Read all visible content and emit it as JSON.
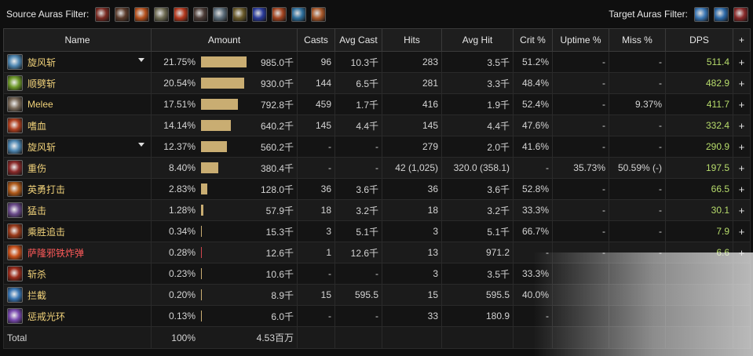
{
  "filters": {
    "source_label": "Source Auras Filter:",
    "target_label": "Target Auras Filter:",
    "source_icons": [
      {
        "name": "aura-claw-icon",
        "color": "#7a2a22"
      },
      {
        "name": "aura-arm-icon",
        "color": "#5a3a2a"
      },
      {
        "name": "aura-fire-fist-icon",
        "color": "#b5501c"
      },
      {
        "name": "aura-whirl-icon",
        "color": "#6d6a52"
      },
      {
        "name": "aura-flame-icon",
        "color": "#b4381d"
      },
      {
        "name": "aura-arm2-icon",
        "color": "#4b3b36"
      },
      {
        "name": "aura-slash-icon",
        "color": "#5c6d7a"
      },
      {
        "name": "aura-beast-icon",
        "color": "#6a5a2a"
      },
      {
        "name": "aura-blue-fire-icon",
        "color": "#2a3a9a"
      },
      {
        "name": "aura-red-arrow-icon",
        "color": "#a34420"
      },
      {
        "name": "aura-ice-icon",
        "color": "#2e6f9c"
      },
      {
        "name": "aura-sun-icon",
        "color": "#a8582a"
      }
    ],
    "target_icons": [
      {
        "name": "target-swirl-icon",
        "color": "#3a77b5"
      },
      {
        "name": "target-swirl2-icon",
        "color": "#2d6aa8"
      },
      {
        "name": "target-blade-icon",
        "color": "#8a2a2a"
      }
    ]
  },
  "columns": [
    "Name",
    "Amount",
    "Casts",
    "Avg Cast",
    "Hits",
    "Avg Hit",
    "Crit %",
    "Uptime %",
    "Miss %",
    "DPS",
    "+"
  ],
  "rows": [
    {
      "icon": "whirlwind-icon",
      "color": "#4f88b3",
      "name": "旋风斩",
      "dropdown": true,
      "pct": "21.75%",
      "frac": 0.2175,
      "amount": "985.0千",
      "casts": "96",
      "avg_cast": "10.3千",
      "hits": "283",
      "avg_hit": "3.5千",
      "crit": "51.2%",
      "uptime": "-",
      "miss": "-",
      "dps": "511.4",
      "plus": "+"
    },
    {
      "icon": "cleave-icon",
      "color": "#6f9a2a",
      "name": "顺劈斩",
      "dropdown": false,
      "pct": "20.54%",
      "frac": 0.2054,
      "amount": "930.0千",
      "casts": "144",
      "avg_cast": "6.5千",
      "hits": "281",
      "avg_hit": "3.3千",
      "crit": "48.4%",
      "uptime": "-",
      "miss": "-",
      "dps": "482.9",
      "plus": "+"
    },
    {
      "icon": "melee-icon",
      "color": "#7a6a5a",
      "name": "Melee",
      "dropdown": false,
      "pct": "17.51%",
      "frac": 0.1751,
      "amount": "792.8千",
      "casts": "459",
      "avg_cast": "1.7千",
      "hits": "416",
      "avg_hit": "1.9千",
      "crit": "52.4%",
      "uptime": "-",
      "miss": "9.37%",
      "dps": "411.7",
      "plus": "+"
    },
    {
      "icon": "bloodthirst-icon",
      "color": "#b04020",
      "name": "嗜血",
      "dropdown": false,
      "pct": "14.14%",
      "frac": 0.1414,
      "amount": "640.2千",
      "casts": "145",
      "avg_cast": "4.4千",
      "hits": "145",
      "avg_hit": "4.4千",
      "crit": "47.6%",
      "uptime": "-",
      "miss": "-",
      "dps": "332.4",
      "plus": "+"
    },
    {
      "icon": "whirlwind2-icon",
      "color": "#4f88b3",
      "name": "旋风斩",
      "dropdown": true,
      "pct": "12.37%",
      "frac": 0.1237,
      "amount": "560.2千",
      "casts": "-",
      "avg_cast": "-",
      "hits": "279",
      "avg_hit": "2.0千",
      "crit": "41.6%",
      "uptime": "-",
      "miss": "-",
      "dps": "290.9",
      "plus": "+"
    },
    {
      "icon": "deep-wounds-icon",
      "color": "#8a2a2a",
      "name": "重伤",
      "dropdown": false,
      "pct": "8.40%",
      "frac": 0.084,
      "amount": "380.4千",
      "casts": "-",
      "avg_cast": "-",
      "hits": "42 (1,025)",
      "avg_hit": "320.0 (358.1)",
      "crit": "-",
      "uptime": "35.73%",
      "miss": "50.59% (-)",
      "dps": "197.5",
      "plus": "+"
    },
    {
      "icon": "heroic-strike-icon",
      "color": "#b05a1a",
      "name": "英勇打击",
      "dropdown": false,
      "pct": "2.83%",
      "frac": 0.0283,
      "amount": "128.0千",
      "casts": "36",
      "avg_cast": "3.6千",
      "hits": "36",
      "avg_hit": "3.6千",
      "crit": "52.8%",
      "uptime": "-",
      "miss": "-",
      "dps": "66.5",
      "plus": "+"
    },
    {
      "icon": "slam-icon",
      "color": "#6a4a8a",
      "name": "猛击",
      "dropdown": false,
      "pct": "1.28%",
      "frac": 0.0128,
      "amount": "57.9千",
      "casts": "18",
      "avg_cast": "3.2千",
      "hits": "18",
      "avg_hit": "3.2千",
      "crit": "33.3%",
      "uptime": "-",
      "miss": "-",
      "dps": "30.1",
      "plus": "+"
    },
    {
      "icon": "victory-rush-icon",
      "color": "#9a3a1a",
      "name": "乘胜追击",
      "dropdown": false,
      "pct": "0.34%",
      "frac": 0.0034,
      "amount": "15.3千",
      "casts": "3",
      "avg_cast": "5.1千",
      "hits": "3",
      "avg_hit": "5.1千",
      "crit": "66.7%",
      "uptime": "-",
      "miss": "-",
      "dps": "7.9",
      "plus": "+"
    },
    {
      "icon": "bomb-icon",
      "color": "#c8501a",
      "name": "萨隆邪铁炸弹",
      "red": true,
      "dropdown": false,
      "pct": "0.28%",
      "frac": 0.0028,
      "amount": "12.6千",
      "casts": "1",
      "avg_cast": "12.6千",
      "hits": "13",
      "avg_hit": "971.2",
      "crit": "-",
      "uptime": "-",
      "miss": "-",
      "dps": "6.6",
      "plus": "+"
    },
    {
      "icon": "execute-icon",
      "color": "#9a2a1a",
      "name": "斩杀",
      "dropdown": false,
      "pct": "0.23%",
      "frac": 0.0023,
      "amount": "10.6千",
      "casts": "-",
      "avg_cast": "-",
      "hits": "3",
      "avg_hit": "3.5千",
      "crit": "33.3%",
      "uptime": "",
      "miss": "",
      "dps": "",
      "plus": ""
    },
    {
      "icon": "intercept-icon",
      "color": "#3a77b5",
      "name": "拦截",
      "dropdown": false,
      "pct": "0.20%",
      "frac": 0.002,
      "amount": "8.9千",
      "casts": "15",
      "avg_cast": "595.5",
      "hits": "15",
      "avg_hit": "595.5",
      "crit": "40.0%",
      "uptime": "",
      "miss": "",
      "dps": "",
      "plus": ""
    },
    {
      "icon": "retribution-aura-icon",
      "color": "#7a4ab0",
      "name": "惩戒光环",
      "dropdown": false,
      "pct": "0.13%",
      "frac": 0.0013,
      "amount": "6.0千",
      "casts": "-",
      "avg_cast": "-",
      "hits": "33",
      "avg_hit": "180.9",
      "crit": "-",
      "uptime": "",
      "miss": "",
      "dps": "",
      "plus": ""
    }
  ],
  "total": {
    "label": "Total",
    "pct": "100%",
    "amount": "4.53百万"
  }
}
